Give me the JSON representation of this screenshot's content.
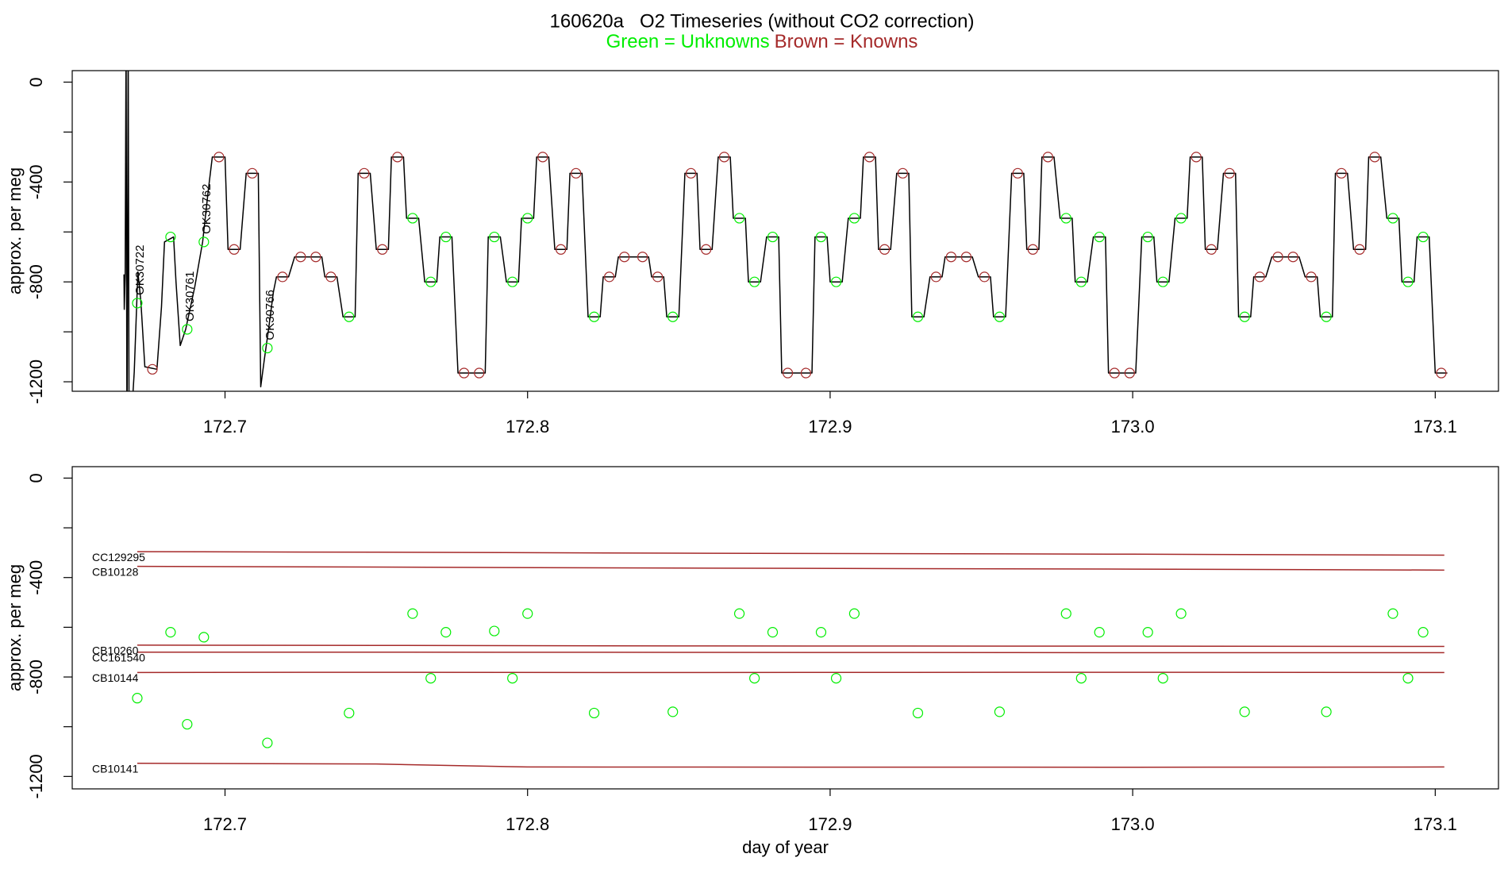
{
  "chart_data": [
    {
      "type": "line",
      "title": "160620a   O2 Timeseries (without CO2 correction)",
      "subtitle": [
        {
          "text": "Green = Unknowns",
          "color": "#00ee00"
        },
        {
          "text": "Brown = Knowns",
          "color": "#a52a2a"
        }
      ],
      "ylabel": "approx. per meg",
      "xlim": [
        172.6495,
        173.1209
      ],
      "ylim": [
        -1238,
        46
      ],
      "xticks": [
        172.7,
        172.8,
        172.9,
        {
          "value": 173,
          "label": "173.0"
        },
        173.1
      ],
      "yticks": [
        0,
        -400,
        -800,
        -1200
      ],
      "yminorticks": [
        -200,
        -600,
        -1000
      ],
      "series": [
        {
          "kind": "line",
          "color": "#000000",
          "x": [
            172.6666,
            172.6667,
            172.667,
            172.6673,
            172.6676,
            172.668,
            172.6683,
            172.67,
            172.6712,
            172.6722,
            172.6735,
            172.6775,
            172.679,
            172.68,
            172.683,
            172.6838,
            172.6852,
            172.687,
            172.69,
            172.6926,
            172.6945,
            172.6958,
            172.7,
            172.701,
            172.705,
            172.707,
            172.711,
            172.7118,
            172.713,
            172.7145,
            172.716,
            172.717,
            172.721,
            172.723,
            172.732,
            172.733,
            172.737,
            172.739,
            172.743,
            172.744,
            172.748,
            172.75,
            172.754,
            172.755,
            172.759,
            172.76,
            172.764,
            172.766,
            172.77,
            172.771,
            172.775,
            172.777,
            172.786,
            172.787,
            172.791,
            172.793,
            172.797,
            172.798,
            172.802,
            172.803,
            172.807,
            172.809,
            172.813,
            172.814,
            172.818,
            172.82,
            172.824,
            172.825,
            172.829,
            172.83,
            172.84,
            172.841,
            172.845,
            172.846,
            172.85,
            172.852,
            172.856,
            172.857,
            172.861,
            172.863,
            172.867,
            172.868,
            172.872,
            172.873,
            172.877,
            172.879,
            172.883,
            172.884,
            172.894,
            172.895,
            172.899,
            172.9,
            172.904,
            172.906,
            172.91,
            172.911,
            172.915,
            172.916,
            172.92,
            172.922,
            172.926,
            172.927,
            172.931,
            172.933,
            172.937,
            172.938,
            172.947,
            172.949,
            172.953,
            172.954,
            172.958,
            172.96,
            172.964,
            172.965,
            172.969,
            172.97,
            172.974,
            172.976,
            172.98,
            172.981,
            172.985,
            172.987,
            172.991,
            172.992,
            173.001,
            173.003,
            173.007,
            173.008,
            173.012,
            173.014,
            173.018,
            173.019,
            173.023,
            173.024,
            173.028,
            173.03,
            173.034,
            173.035,
            173.039,
            173.04,
            173.044,
            173.046,
            173.055,
            173.057,
            173.061,
            173.062,
            173.066,
            173.067,
            173.071,
            173.073,
            173.077,
            173.078,
            173.082,
            173.084,
            173.088,
            173.089,
            173.093,
            173.094,
            173.098,
            173.1,
            173.104
          ],
          "values": [
            -770,
            -910,
            -770,
            200,
            -1500,
            200,
            -1500,
            -1160,
            -760,
            -880,
            -1140,
            -1150,
            -900,
            -640,
            -620,
            -800,
            -1055,
            -990,
            -820,
            -640,
            -430,
            -300,
            -300,
            -670,
            -670,
            -365,
            -365,
            -1220,
            -1110,
            -980,
            -840,
            -780,
            -780,
            -700,
            -700,
            -780,
            -780,
            -940,
            -940,
            -365,
            -365,
            -670,
            -670,
            -300,
            -300,
            -545,
            -545,
            -800,
            -800,
            -620,
            -620,
            -1165,
            -1165,
            -620,
            -620,
            -800,
            -800,
            -545,
            -545,
            -300,
            -300,
            -670,
            -670,
            -365,
            -365,
            -940,
            -940,
            -780,
            -780,
            -700,
            -700,
            -780,
            -780,
            -940,
            -940,
            -365,
            -365,
            -670,
            -670,
            -300,
            -300,
            -545,
            -545,
            -800,
            -800,
            -620,
            -620,
            -1165,
            -1165,
            -620,
            -620,
            -800,
            -800,
            -545,
            -545,
            -300,
            -300,
            -670,
            -670,
            -365,
            -365,
            -940,
            -940,
            -780,
            -780,
            -700,
            -700,
            -780,
            -780,
            -940,
            -940,
            -365,
            -365,
            -670,
            -670,
            -300,
            -300,
            -545,
            -545,
            -800,
            -800,
            -620,
            -620,
            -1165,
            -1165,
            -620,
            -620,
            -800,
            -800,
            -545,
            -545,
            -300,
            -300,
            -670,
            -670,
            -365,
            -365,
            -940,
            -940,
            -780,
            -780,
            -700,
            -700,
            -780,
            -780,
            -940,
            -940,
            -365,
            -365,
            -670,
            -670,
            -300,
            -300,
            -545,
            -545,
            -800,
            -800,
            -620,
            -620,
            -1165,
            -1165
          ]
        },
        {
          "kind": "points",
          "color": "#a52a2a",
          "x": [
            172.676,
            172.698,
            172.703,
            172.709,
            172.719,
            172.725,
            172.73,
            172.735,
            172.746,
            172.752,
            172.757,
            172.779,
            172.784,
            172.805,
            172.811,
            172.816,
            172.827,
            172.832,
            172.838,
            172.843,
            172.854,
            172.859,
            172.865,
            172.886,
            172.892,
            172.913,
            172.918,
            172.924,
            172.935,
            172.94,
            172.945,
            172.951,
            172.962,
            172.967,
            172.972,
            172.994,
            172.999,
            173.021,
            173.026,
            173.032,
            173.042,
            173.048,
            173.053,
            173.059,
            173.069,
            173.075,
            173.08,
            173.102
          ],
          "values": [
            -1150,
            -300,
            -670,
            -365,
            -780,
            -700,
            -700,
            -780,
            -365,
            -670,
            -300,
            -1165,
            -1165,
            -300,
            -670,
            -365,
            -780,
            -700,
            -700,
            -780,
            -365,
            -670,
            -300,
            -1165,
            -1165,
            -300,
            -670,
            -365,
            -780,
            -700,
            -700,
            -780,
            -365,
            -670,
            -300,
            -1165,
            -1165,
            -300,
            -670,
            -365,
            -780,
            -700,
            -700,
            -780,
            -365,
            -670,
            -300,
            -1165
          ]
        },
        {
          "kind": "points",
          "color": "#00ee00",
          "x": [
            172.671,
            172.682,
            172.6875,
            172.693,
            172.714,
            172.741,
            172.762,
            172.768,
            172.773,
            172.789,
            172.795,
            172.8,
            172.822,
            172.848,
            172.87,
            172.875,
            172.881,
            172.897,
            172.902,
            172.908,
            172.929,
            172.956,
            172.978,
            172.983,
            172.989,
            173.005,
            173.01,
            173.016,
            173.037,
            173.064,
            173.086,
            173.091,
            173.096
          ],
          "values": [
            -885,
            -620,
            -990,
            -640,
            -1065,
            -940,
            -545,
            -800,
            -620,
            -620,
            -800,
            -545,
            -940,
            -940,
            -545,
            -800,
            -620,
            -620,
            -800,
            -545,
            -940,
            -940,
            -545,
            -800,
            -620,
            -620,
            -800,
            -545,
            -940,
            -940,
            -545,
            -800,
            -620
          ],
          "point_labels": [
            "OK30722",
            null,
            "OK30761",
            "OK30762",
            "OK30766",
            null,
            null,
            null,
            null,
            null,
            null,
            null,
            null,
            null,
            null,
            null,
            null,
            null,
            null,
            null,
            null,
            null,
            null,
            null,
            null,
            null,
            null,
            null,
            null,
            null,
            null,
            null,
            null
          ]
        }
      ]
    },
    {
      "type": "scatter",
      "ylabel": "approx. per meg",
      "xlabel": "day of year",
      "xlim": [
        172.6495,
        173.1209
      ],
      "ylim": [
        -1250,
        46
      ],
      "xticks": [
        172.7,
        172.8,
        172.9,
        {
          "value": 173,
          "label": "173.0"
        },
        173.1
      ],
      "yticks": [
        0,
        -400,
        -800,
        -1200
      ],
      "yminorticks": [
        -200,
        -600,
        -1000
      ],
      "series": [
        {
          "kind": "points",
          "color": "#00ee00",
          "x": [
            172.671,
            172.682,
            172.6875,
            172.693,
            172.714,
            172.741,
            172.762,
            172.768,
            172.773,
            172.789,
            172.795,
            172.8,
            172.822,
            172.848,
            172.87,
            172.875,
            172.881,
            172.897,
            172.902,
            172.908,
            172.929,
            172.956,
            172.978,
            172.983,
            172.989,
            173.005,
            173.01,
            173.016,
            173.037,
            173.064,
            173.086,
            173.091,
            173.096
          ],
          "values": [
            -885,
            -620,
            -990,
            -640,
            -1065,
            -945,
            -545,
            -805,
            -620,
            -615,
            -805,
            -545,
            -945,
            -940,
            -545,
            -805,
            -620,
            -620,
            -805,
            -545,
            -945,
            -940,
            -545,
            -805,
            -620,
            -620,
            -805,
            -545,
            -940,
            -940,
            -545,
            -805,
            -620
          ]
        },
        {
          "kind": "line",
          "name": "CC129295",
          "color": "#a52a2a",
          "x": [
            172.671,
            172.75,
            172.85,
            173.0,
            173.103
          ],
          "values": [
            -296,
            -298,
            -302,
            -306,
            -310
          ]
        },
        {
          "kind": "line",
          "name": "CB10128",
          "color": "#a52a2a",
          "x": [
            172.671,
            172.75,
            172.85,
            173.0,
            173.103
          ],
          "values": [
            -355,
            -358,
            -362,
            -366,
            -370
          ]
        },
        {
          "kind": "line",
          "name": "CB10260",
          "color": "#a52a2a",
          "x": [
            172.671,
            172.75,
            172.85,
            173.0,
            173.103
          ],
          "values": [
            -672,
            -673,
            -675,
            -676,
            -677
          ]
        },
        {
          "kind": "line",
          "name": "CC161540",
          "color": "#a52a2a",
          "x": [
            172.671,
            172.75,
            172.85,
            173.0,
            173.103
          ],
          "values": [
            -700,
            -700,
            -701,
            -702,
            -702
          ]
        },
        {
          "kind": "line",
          "name": "CB10144",
          "color": "#a52a2a",
          "x": [
            172.671,
            172.75,
            172.85,
            173.0,
            173.103
          ],
          "values": [
            -782,
            -781,
            -782,
            -781,
            -782
          ]
        },
        {
          "kind": "line",
          "name": "CB10141",
          "color": "#a52a2a",
          "x": [
            172.671,
            172.75,
            172.8,
            173.0,
            173.103
          ],
          "values": [
            -1147,
            -1150,
            -1162,
            -1163,
            -1162
          ]
        }
      ]
    }
  ]
}
